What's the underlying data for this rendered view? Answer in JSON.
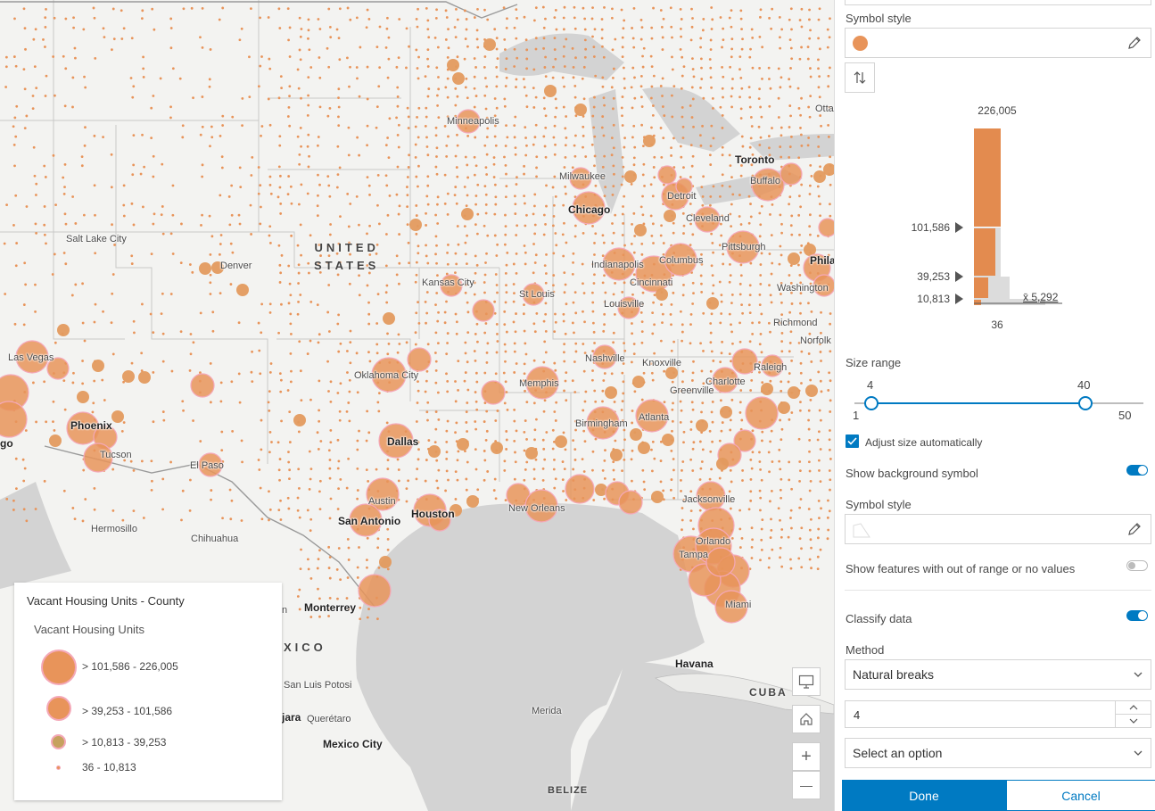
{
  "map": {
    "country_labels": {
      "us_line1": "UNITED",
      "us_line2": "STATES",
      "mexico": "XICO",
      "cuba": "CUBA",
      "belize": "BELIZE"
    },
    "cities": {
      "toronto": "Toronto",
      "buffalo": "Buffalo",
      "otta": "Otta",
      "minneapolis": "Minneapolis",
      "milwaukee": "Milwaukee",
      "chicago": "Chicago",
      "detroit": "Detroit",
      "cleveland": "Cleveland",
      "pittsburgh": "Pittsburgh",
      "phila": "Phila",
      "salt_lake_city": "Salt Lake City",
      "denver": "Denver",
      "indianapolis": "Indianapolis",
      "columbus": "Columbus",
      "kansas_city": "Kansas City",
      "st_louis": "St Louis",
      "cincinnati": "Cincinnati",
      "washington": "Washington",
      "louisville": "Louisville",
      "richmond": "Richmond",
      "norfolk": "Norfolk",
      "las_vegas": "Las Vegas",
      "nashville": "Nashville",
      "knoxville": "Knoxville",
      "raleigh": "Raleigh",
      "oklahoma_city": "Oklahoma City",
      "memphis": "Memphis",
      "charlotte": "Charlotte",
      "greenville": "Greenville",
      "birmingham": "Birmingham",
      "atlanta": "Atlanta",
      "phoenix": "Phoenix",
      "tucson": "Tucson",
      "go": "go",
      "el_paso": "El Paso",
      "dallas": "Dallas",
      "austin": "Austin",
      "san_antonio": "San Antonio",
      "houston": "Houston",
      "new_orleans": "New Orleans",
      "jacksonville": "Jacksonville",
      "orlando": "Orlando",
      "tampa": "Tampa",
      "miami": "Miami",
      "hermosillo": "Hermosillo",
      "chihuahua": "Chihuahua",
      "monterrey": "Monterrey",
      "n": "n",
      "san_luis_potosi": "San Luis Potosi",
      "jara": "jara",
      "queretaro": "Querétaro",
      "mexico_city": "Mexico City",
      "havana": "Havana",
      "merida": "Merida"
    },
    "controls": {
      "display_icon": "monitor-icon",
      "home_icon": "home-icon",
      "zoom_in": "+",
      "zoom_out": "—"
    },
    "symbol_color": "#e8945a",
    "halo_color": "#f4a8b8"
  },
  "legend": {
    "title": "Vacant Housing Units - County",
    "subtitle": "Vacant Housing Units",
    "classes": [
      {
        "label": "> 101,586 - 226,005"
      },
      {
        "label": "> 39,253 - 101,586"
      },
      {
        "label": "> 10,813 - 39,253"
      },
      {
        "label": "36 - 10,813"
      }
    ]
  },
  "panel": {
    "symbol_style_label": "Symbol style",
    "histogram": {
      "max": "226,005",
      "break1": "101,586",
      "break2": "39,253",
      "break3": "10,813",
      "min": "36",
      "mean": "x̄ 5,292",
      "values": {
        "max": 226005,
        "break1": 101586,
        "break2": 39253,
        "break3": 10813,
        "min": 36,
        "mean": 5292
      }
    },
    "size_range": {
      "label": "Size range",
      "low_value": "4",
      "high_value": "40",
      "min_label": "1",
      "max_label": "50",
      "low": 4,
      "high": 40,
      "min": 1,
      "max": 50
    },
    "adjust_size_label": "Adjust size automatically",
    "show_background_label": "Show background symbol",
    "background_symbol_style_label": "Symbol style",
    "out_of_range_label": "Show features with out of range or no values",
    "classify_label": "Classify data",
    "method_label": "Method",
    "method_value": "Natural breaks",
    "classes_value": "4",
    "select_option_placeholder": "Select an option",
    "done_label": "Done",
    "cancel_label": "Cancel"
  }
}
